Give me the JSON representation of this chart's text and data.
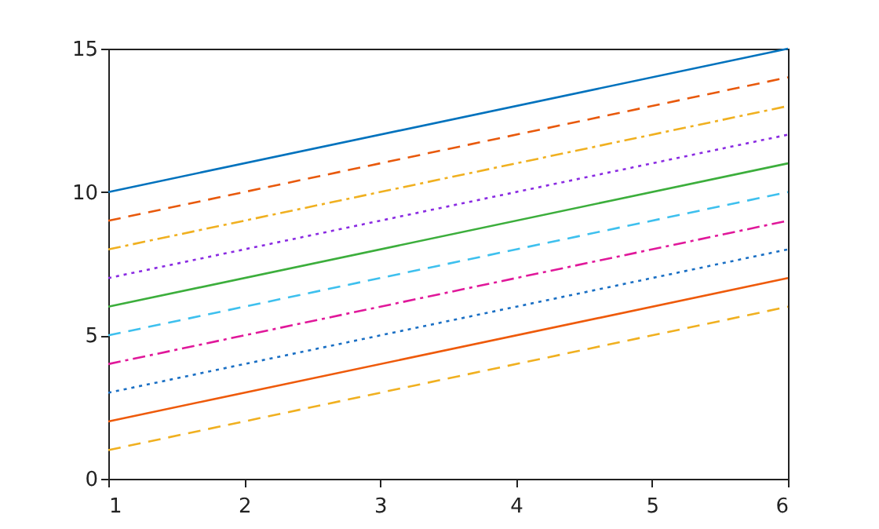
{
  "chart_data": {
    "type": "line",
    "x": [
      1,
      6
    ],
    "xlim": [
      1,
      6
    ],
    "xticks": [
      1,
      2,
      3,
      4,
      5,
      6
    ],
    "ylim": [
      0,
      15
    ],
    "yticks": [
      0,
      5,
      10,
      15
    ],
    "grid": false,
    "legend": false,
    "marker": "none",
    "series": [
      {
        "color": "#0072bd",
        "values": [
          10,
          15
        ],
        "line_style": "solid"
      },
      {
        "color": "#e8590c",
        "values": [
          9,
          14
        ],
        "line_style": "dashed"
      },
      {
        "color": "#f0b020",
        "values": [
          8,
          13
        ],
        "line_style": "dashdot"
      },
      {
        "color": "#8a2be2",
        "values": [
          7,
          12
        ],
        "line_style": "dotted"
      },
      {
        "color": "#3cae3c",
        "values": [
          6,
          11
        ],
        "line_style": "solid"
      },
      {
        "color": "#3ec0ee",
        "values": [
          5,
          10
        ],
        "line_style": "dashed"
      },
      {
        "color": "#e0189a",
        "values": [
          4,
          9
        ],
        "line_style": "dashdot"
      },
      {
        "color": "#1a6fc4",
        "values": [
          3,
          8
        ],
        "line_style": "dotted"
      },
      {
        "color": "#ee5a0a",
        "values": [
          2,
          7
        ],
        "line_style": "solid"
      },
      {
        "color": "#f0b020",
        "values": [
          1,
          6
        ],
        "line_style": "dashed"
      }
    ]
  }
}
